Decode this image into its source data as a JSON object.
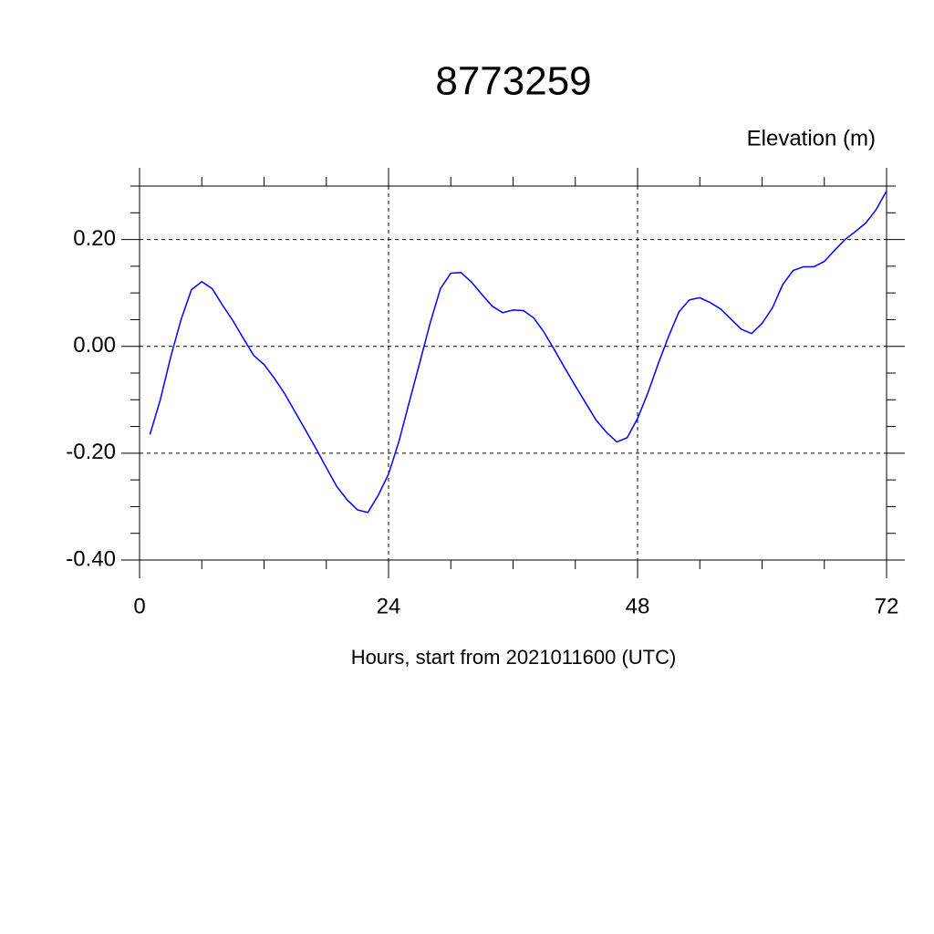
{
  "chart_data": {
    "type": "line",
    "title": "8773259",
    "y_label": "Elevation (m)",
    "x_label": "Hours, start from 2021011600 (UTC)",
    "x": [
      1,
      2,
      3,
      4,
      5,
      6,
      7,
      8,
      9,
      10,
      11,
      12,
      13,
      14,
      15,
      16,
      17,
      18,
      19,
      20,
      21,
      22,
      23,
      24,
      25,
      26,
      27,
      28,
      29,
      30,
      31,
      32,
      33,
      34,
      35,
      36,
      37,
      38,
      39,
      40,
      41,
      42,
      43,
      44,
      45,
      46,
      47,
      48,
      49,
      50,
      51,
      52,
      53,
      54,
      55,
      56,
      57,
      58,
      59,
      60,
      61,
      62,
      63,
      64,
      65,
      66,
      67,
      68,
      69,
      70,
      71,
      72
    ],
    "series": [
      {
        "color": "#0000ff",
        "values": [
          -0.165,
          -0.1,
          -0.02,
          0.05,
          0.106,
          0.121,
          0.108,
          0.077,
          0.048,
          0.015,
          -0.017,
          -0.034,
          -0.06,
          -0.089,
          -0.123,
          -0.157,
          -0.191,
          -0.227,
          -0.262,
          -0.287,
          -0.306,
          -0.311,
          -0.279,
          -0.239,
          -0.178,
          -0.104,
          -0.031,
          0.043,
          0.108,
          0.137,
          0.138,
          0.12,
          0.097,
          0.075,
          0.063,
          0.068,
          0.067,
          0.053,
          0.026,
          -0.007,
          -0.041,
          -0.074,
          -0.106,
          -0.138,
          -0.161,
          -0.179,
          -0.171,
          -0.135,
          -0.087,
          -0.032,
          0.019,
          0.065,
          0.087,
          0.091,
          0.082,
          0.07,
          0.051,
          0.032,
          0.024,
          0.043,
          0.072,
          0.116,
          0.142,
          0.149,
          0.149,
          0.159,
          0.18,
          0.2,
          0.215,
          0.231,
          0.256,
          0.291
        ]
      }
    ],
    "xlim": [
      0,
      72
    ],
    "ylim": [
      -0.4,
      0.3
    ],
    "xticks": [
      0,
      24,
      48,
      72
    ],
    "yticks": [
      {
        "value": -0.4,
        "label": "-0.40"
      },
      {
        "value": -0.2,
        "label": "-0.20"
      },
      {
        "value": 0,
        "label": "0.00"
      },
      {
        "value": 0.2,
        "label": "0.20"
      }
    ],
    "x_minor_ticks": [
      6,
      12,
      18,
      30,
      36,
      42,
      54,
      60,
      66
    ],
    "y_minor_ticks": [
      -0.35,
      -0.3,
      -0.25,
      -0.15,
      -0.1,
      -0.05,
      0.05,
      0.1,
      0.15,
      0.25,
      0.3
    ],
    "grid": true
  }
}
